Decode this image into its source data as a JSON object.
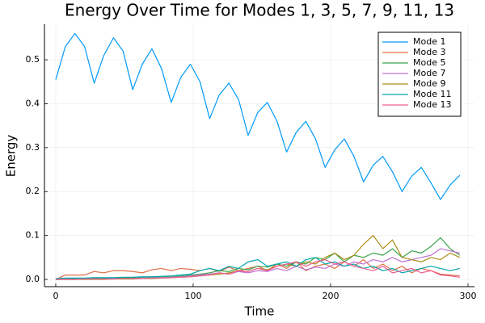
{
  "chart_data": {
    "type": "line",
    "title": "Energy Over Time for Modes 1, 3, 5, 7, 9, 11, 13",
    "x_label": "Time",
    "y_label": "Energy",
    "x": [
      0,
      7,
      14,
      21,
      28,
      35,
      42,
      49,
      56,
      63,
      70,
      77,
      84,
      91,
      98,
      105,
      112,
      119,
      126,
      133,
      140,
      147,
      154,
      161,
      168,
      175,
      182,
      189,
      196,
      203,
      210,
      217,
      224,
      231,
      238,
      245,
      252,
      259,
      266,
      273,
      280,
      287,
      294
    ],
    "series": [
      {
        "name": "Mode 1",
        "color": "#009af9",
        "values": [
          0.455,
          0.53,
          0.56,
          0.53,
          0.447,
          0.51,
          0.55,
          0.52,
          0.432,
          0.49,
          0.525,
          0.48,
          0.403,
          0.46,
          0.49,
          0.45,
          0.366,
          0.42,
          0.447,
          0.41,
          0.328,
          0.38,
          0.403,
          0.36,
          0.29,
          0.335,
          0.36,
          0.32,
          0.255,
          0.295,
          0.32,
          0.28,
          0.222,
          0.26,
          0.28,
          0.245,
          0.2,
          0.235,
          0.255,
          0.22,
          0.182,
          0.215,
          0.237
        ]
      },
      {
        "name": "Mode 3",
        "color": "#e26f46",
        "values": [
          0.0,
          0.01,
          0.01,
          0.01,
          0.018,
          0.015,
          0.02,
          0.02,
          0.018,
          0.015,
          0.022,
          0.025,
          0.02,
          0.025,
          0.023,
          0.02,
          0.025,
          0.018,
          0.028,
          0.02,
          0.025,
          0.03,
          0.02,
          0.035,
          0.025,
          0.04,
          0.02,
          0.03,
          0.035,
          0.025,
          0.04,
          0.03,
          0.045,
          0.025,
          0.035,
          0.02,
          0.03,
          0.015,
          0.025,
          0.02,
          0.012,
          0.01,
          0.008
        ]
      },
      {
        "name": "Mode 5",
        "color": "#3da44d",
        "values": [
          0.0,
          0.0,
          0.001,
          0.002,
          0.002,
          0.003,
          0.003,
          0.004,
          0.004,
          0.005,
          0.005,
          0.006,
          0.007,
          0.008,
          0.01,
          0.012,
          0.015,
          0.02,
          0.018,
          0.025,
          0.022,
          0.03,
          0.028,
          0.035,
          0.03,
          0.04,
          0.035,
          0.05,
          0.045,
          0.06,
          0.04,
          0.055,
          0.05,
          0.06,
          0.055,
          0.07,
          0.05,
          0.065,
          0.06,
          0.075,
          0.095,
          0.07,
          0.055
        ]
      },
      {
        "name": "Mode 7",
        "color": "#c271d2",
        "values": [
          0.0,
          0.0,
          0.0,
          0.001,
          0.001,
          0.001,
          0.002,
          0.002,
          0.002,
          0.003,
          0.003,
          0.004,
          0.005,
          0.006,
          0.008,
          0.01,
          0.012,
          0.015,
          0.012,
          0.018,
          0.015,
          0.02,
          0.018,
          0.025,
          0.02,
          0.03,
          0.022,
          0.028,
          0.025,
          0.035,
          0.03,
          0.04,
          0.035,
          0.045,
          0.04,
          0.05,
          0.04,
          0.045,
          0.05,
          0.055,
          0.07,
          0.065,
          0.06
        ]
      },
      {
        "name": "Mode 9",
        "color": "#ac8e18",
        "values": [
          0.0,
          0.0,
          0.0,
          0.0,
          0.0,
          0.0,
          0.001,
          0.001,
          0.001,
          0.002,
          0.002,
          0.003,
          0.004,
          0.005,
          0.006,
          0.008,
          0.01,
          0.012,
          0.015,
          0.02,
          0.018,
          0.025,
          0.022,
          0.03,
          0.035,
          0.03,
          0.04,
          0.035,
          0.05,
          0.06,
          0.045,
          0.055,
          0.08,
          0.1,
          0.07,
          0.09,
          0.05,
          0.045,
          0.04,
          0.05,
          0.045,
          0.06,
          0.05
        ]
      },
      {
        "name": "Mode 11",
        "color": "#00a9ad",
        "values": [
          0.002,
          0.003,
          0.003,
          0.003,
          0.004,
          0.004,
          0.004,
          0.005,
          0.005,
          0.006,
          0.006,
          0.007,
          0.008,
          0.01,
          0.012,
          0.02,
          0.025,
          0.02,
          0.03,
          0.025,
          0.04,
          0.045,
          0.03,
          0.035,
          0.04,
          0.03,
          0.045,
          0.05,
          0.035,
          0.04,
          0.03,
          0.035,
          0.025,
          0.03,
          0.02,
          0.025,
          0.015,
          0.02,
          0.025,
          0.03,
          0.025,
          0.02,
          0.025
        ]
      },
      {
        "name": "Mode 13",
        "color": "#ed5e93",
        "values": [
          0.0,
          0.0,
          0.0,
          0.001,
          0.001,
          0.001,
          0.001,
          0.002,
          0.002,
          0.002,
          0.003,
          0.003,
          0.004,
          0.005,
          0.006,
          0.008,
          0.01,
          0.015,
          0.012,
          0.02,
          0.018,
          0.025,
          0.02,
          0.03,
          0.035,
          0.04,
          0.03,
          0.04,
          0.045,
          0.035,
          0.04,
          0.03,
          0.025,
          0.02,
          0.03,
          0.015,
          0.02,
          0.025,
          0.015,
          0.02,
          0.01,
          0.008,
          0.005
        ]
      }
    ],
    "xlim": [
      -8.2,
      304.7
    ],
    "xticks": [
      0,
      100,
      200,
      300
    ],
    "ylim": [
      -0.0165,
      0.581
    ],
    "yticks": [
      {
        "value": 0,
        "label": "0.0"
      },
      0.1,
      0.2,
      0.3,
      0.4,
      0.5
    ],
    "grid": true,
    "legend": "top-right"
  }
}
